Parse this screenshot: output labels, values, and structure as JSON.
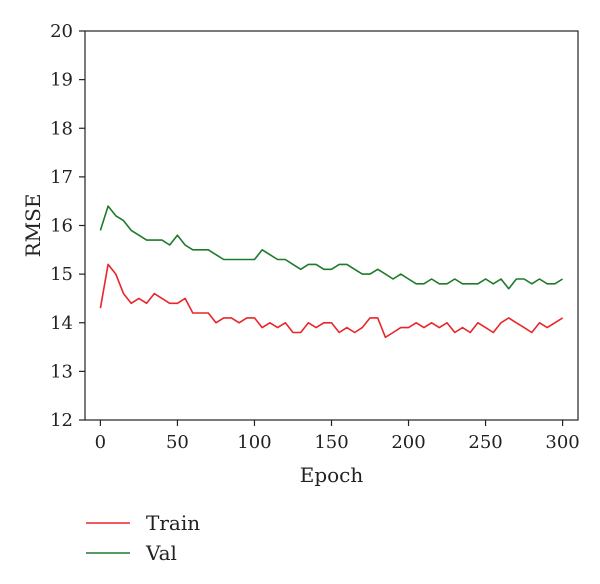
{
  "chart_data": {
    "type": "line",
    "title": "",
    "xlabel": "Epoch",
    "ylabel": "RMSE",
    "xlim": [
      -10,
      310
    ],
    "ylim": [
      12,
      20
    ],
    "xticks": [
      0,
      50,
      100,
      150,
      200,
      250,
      300
    ],
    "yticks": [
      12,
      13,
      14,
      15,
      16,
      17,
      18,
      19,
      20
    ],
    "grid": false,
    "legend": "bottom-left, below plot",
    "series": [
      {
        "name": "Train",
        "color": "#e8262a",
        "x": [
          0,
          5,
          10,
          15,
          20,
          25,
          30,
          35,
          40,
          45,
          50,
          55,
          60,
          65,
          70,
          75,
          80,
          85,
          90,
          95,
          100,
          105,
          110,
          115,
          120,
          125,
          130,
          135,
          140,
          145,
          150,
          155,
          160,
          165,
          170,
          175,
          180,
          185,
          190,
          195,
          200,
          205,
          210,
          215,
          220,
          225,
          230,
          235,
          240,
          245,
          250,
          255,
          260,
          265,
          270,
          275,
          280,
          285,
          290,
          295,
          300
        ],
        "values": [
          14.3,
          15.2,
          15.0,
          14.6,
          14.4,
          14.5,
          14.4,
          14.6,
          14.5,
          14.4,
          14.4,
          14.5,
          14.2,
          14.2,
          14.2,
          14.0,
          14.1,
          14.1,
          14.0,
          14.1,
          14.1,
          13.9,
          14.0,
          13.9,
          14.0,
          13.8,
          13.8,
          14.0,
          13.9,
          14.0,
          14.0,
          13.8,
          13.9,
          13.8,
          13.9,
          14.1,
          14.1,
          13.7,
          13.8,
          13.9,
          13.9,
          14.0,
          13.9,
          14.0,
          13.9,
          14.0,
          13.8,
          13.9,
          13.8,
          14.0,
          13.9,
          13.8,
          14.0,
          14.1,
          14.0,
          13.9,
          13.8,
          14.0,
          13.9,
          14.0,
          14.1
        ]
      },
      {
        "name": "Val",
        "color": "#1f7a2a",
        "x": [
          0,
          5,
          10,
          15,
          20,
          25,
          30,
          35,
          40,
          45,
          50,
          55,
          60,
          65,
          70,
          75,
          80,
          85,
          90,
          95,
          100,
          105,
          110,
          115,
          120,
          125,
          130,
          135,
          140,
          145,
          150,
          155,
          160,
          165,
          170,
          175,
          180,
          185,
          190,
          195,
          200,
          205,
          210,
          215,
          220,
          225,
          230,
          235,
          240,
          245,
          250,
          255,
          260,
          265,
          270,
          275,
          280,
          285,
          290,
          295,
          300
        ],
        "values": [
          15.9,
          16.4,
          16.2,
          16.1,
          15.9,
          15.8,
          15.7,
          15.7,
          15.7,
          15.6,
          15.8,
          15.6,
          15.5,
          15.5,
          15.5,
          15.4,
          15.3,
          15.3,
          15.3,
          15.3,
          15.3,
          15.5,
          15.4,
          15.3,
          15.3,
          15.2,
          15.1,
          15.2,
          15.2,
          15.1,
          15.1,
          15.2,
          15.2,
          15.1,
          15.0,
          15.0,
          15.1,
          15.0,
          14.9,
          15.0,
          14.9,
          14.8,
          14.8,
          14.9,
          14.8,
          14.8,
          14.9,
          14.8,
          14.8,
          14.8,
          14.9,
          14.8,
          14.9,
          14.7,
          14.9,
          14.9,
          14.8,
          14.9,
          14.8,
          14.8,
          14.9
        ]
      }
    ]
  }
}
